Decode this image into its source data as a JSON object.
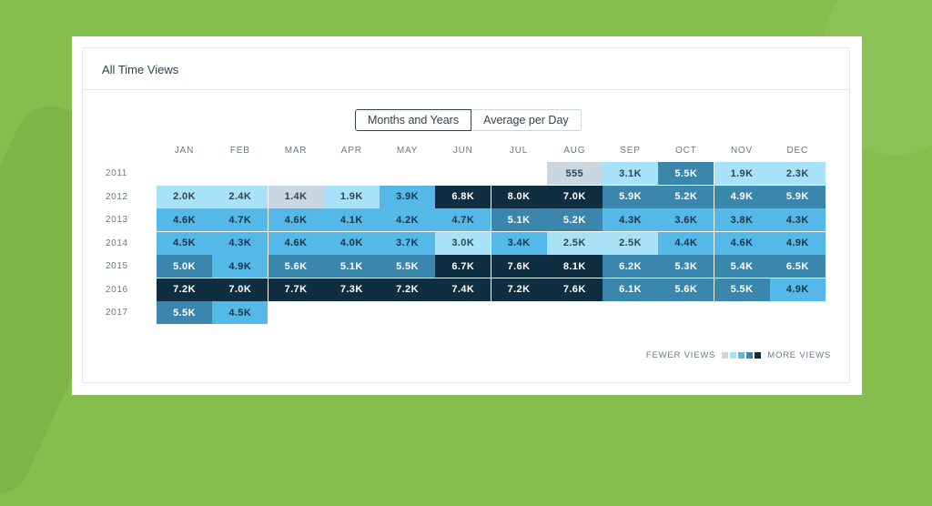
{
  "card": {
    "title": "All Time Views"
  },
  "toggle": {
    "active_label": "Months and Years",
    "inactive_label": "Average per Day"
  },
  "legend": {
    "fewer_label": "FEWER VIEWS",
    "more_label": "MORE VIEWS",
    "colors": [
      "#c8d7e1",
      "#a8e2f8",
      "#54b8e8",
      "#3a86ad",
      "#0f2e42"
    ]
  },
  "chart_data": {
    "type": "heatmap",
    "columns": [
      "JAN",
      "FEB",
      "MAR",
      "APR",
      "MAY",
      "JUN",
      "JUL",
      "AUG",
      "SEP",
      "OCT",
      "NOV",
      "DEC"
    ],
    "rows": [
      "2011",
      "2012",
      "2013",
      "2014",
      "2015",
      "2016",
      "2017"
    ],
    "cells": [
      [
        null,
        null,
        null,
        null,
        null,
        null,
        null,
        "555",
        "3.1K",
        "5.5K",
        "1.9K",
        "2.3K"
      ],
      [
        "2.0K",
        "2.4K",
        "1.4K",
        "1.9K",
        "3.9K",
        "6.8K",
        "8.0K",
        "7.0K",
        "5.9K",
        "5.2K",
        "4.9K",
        "5.9K"
      ],
      [
        "4.6K",
        "4.7K",
        "4.6K",
        "4.1K",
        "4.2K",
        "4.7K",
        "5.1K",
        "5.2K",
        "4.3K",
        "3.6K",
        "3.8K",
        "4.3K"
      ],
      [
        "4.5K",
        "4.3K",
        "4.6K",
        "4.0K",
        "3.7K",
        "3.0K",
        "3.4K",
        "2.5K",
        "2.5K",
        "4.4K",
        "4.6K",
        "4.9K"
      ],
      [
        "5.0K",
        "4.9K",
        "5.6K",
        "5.1K",
        "5.5K",
        "6.7K",
        "7.6K",
        "8.1K",
        "6.2K",
        "5.3K",
        "5.4K",
        "6.5K"
      ],
      [
        "7.2K",
        "7.0K",
        "7.7K",
        "7.3K",
        "7.2K",
        "7.4K",
        "7.2K",
        "7.6K",
        "6.1K",
        "5.6K",
        "5.5K",
        "4.9K"
      ],
      [
        "5.5K",
        "4.5K",
        null,
        null,
        null,
        null,
        null,
        null,
        null,
        null,
        null,
        null
      ]
    ],
    "levels": [
      [
        null,
        null,
        null,
        null,
        null,
        null,
        null,
        0,
        1,
        3,
        1,
        1
      ],
      [
        1,
        1,
        0,
        1,
        2,
        4,
        4,
        4,
        3,
        3,
        3,
        3
      ],
      [
        2,
        2,
        2,
        2,
        2,
        2,
        3,
        3,
        2,
        2,
        2,
        2
      ],
      [
        2,
        2,
        2,
        2,
        2,
        1,
        2,
        1,
        1,
        2,
        2,
        2
      ],
      [
        3,
        2,
        3,
        3,
        3,
        4,
        4,
        4,
        3,
        3,
        3,
        3
      ],
      [
        4,
        4,
        4,
        4,
        4,
        4,
        4,
        4,
        3,
        3,
        3,
        2
      ],
      [
        3,
        2,
        null,
        null,
        null,
        null,
        null,
        null,
        null,
        null,
        null,
        null
      ]
    ]
  }
}
